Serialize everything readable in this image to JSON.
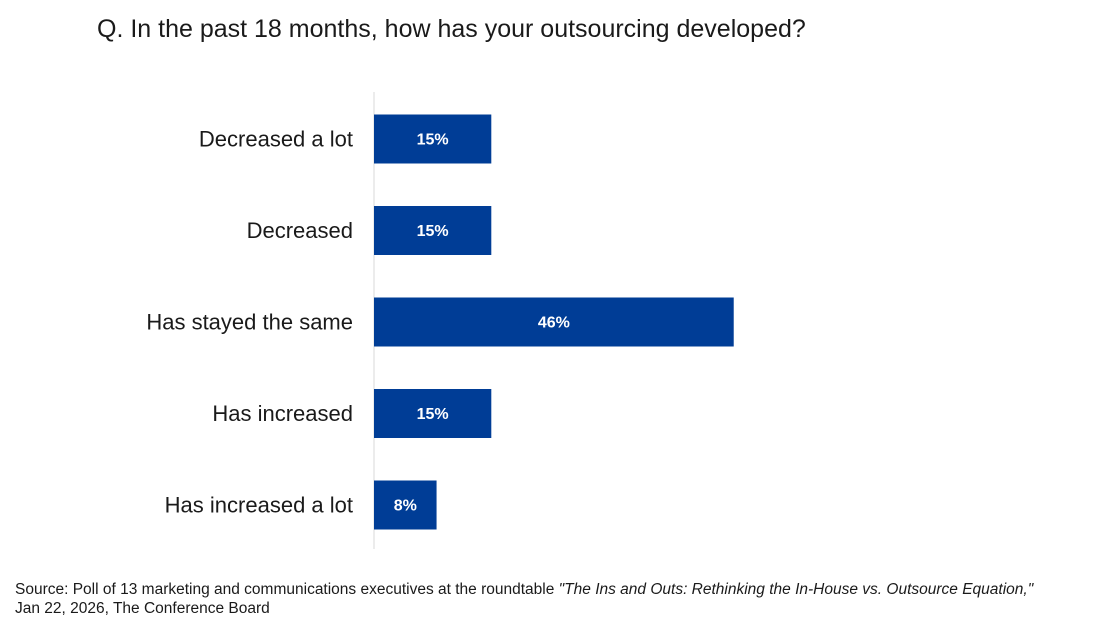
{
  "chart_data": {
    "type": "bar",
    "orientation": "horizontal",
    "title": "Q. In the past 18 months, how has your outsourcing developed?",
    "categories": [
      "Decreased a lot",
      "Decreased",
      "Has stayed the same",
      "Has increased",
      "Has increased a lot"
    ],
    "values": [
      15,
      15,
      46,
      15,
      8
    ],
    "value_labels": [
      "15%",
      "15%",
      "46%",
      "15%",
      "8%"
    ],
    "unit": "%",
    "xlabel": "",
    "ylabel": "",
    "xlim": [
      0,
      100
    ],
    "grid": false,
    "legend": "none",
    "bar_color": "#003D96",
    "label_color": "#FFFFFF"
  },
  "source": {
    "prefix": "Source: Poll of 13 marketing and communications executives at the roundtable ",
    "event_title": "\"The Ins and Outs: Rethinking the In-House vs. Outsource Equation,\"",
    "line2": "Jan 22, 2026, The Conference Board"
  }
}
